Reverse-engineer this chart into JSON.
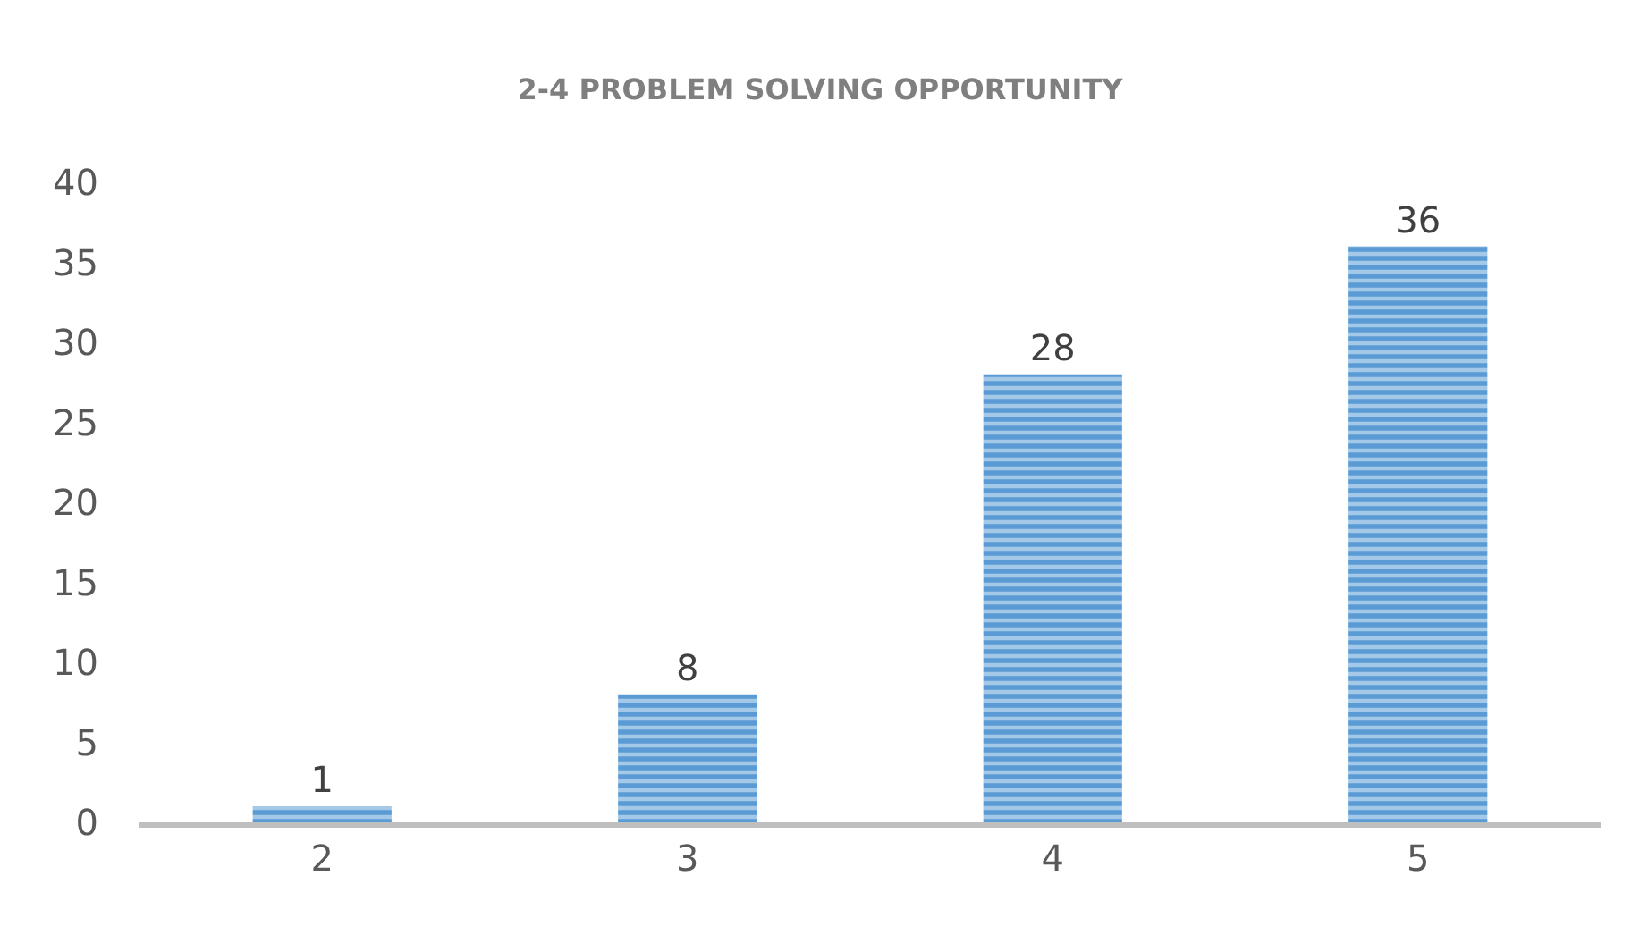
{
  "chart_data": {
    "type": "bar",
    "title": "2-4 PROBLEM SOLVING OPPORTUNITY",
    "categories": [
      "2",
      "3",
      "4",
      "5"
    ],
    "values": [
      1,
      8,
      28,
      36
    ],
    "color": "#5b9bd5",
    "ylim": [
      0,
      40
    ],
    "yticks": [
      0,
      5,
      10,
      15,
      20,
      25,
      30,
      35,
      40
    ],
    "grid": false,
    "data_labels": true
  }
}
